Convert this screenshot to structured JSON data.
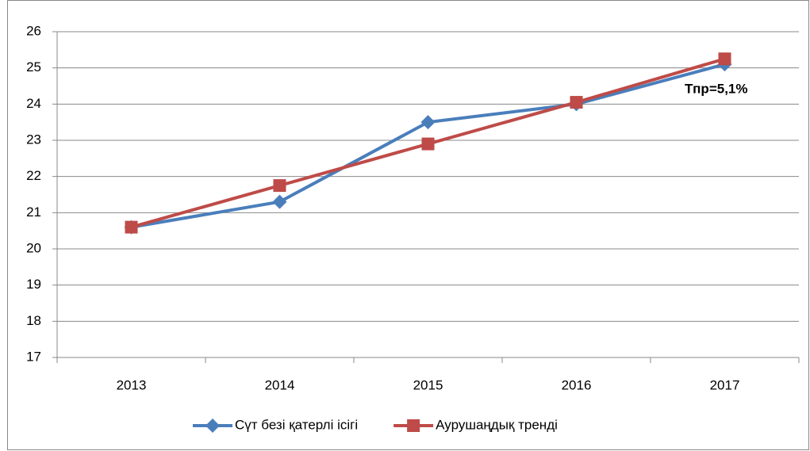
{
  "chart_data": {
    "type": "line",
    "categories": [
      "2013",
      "2014",
      "2015",
      "2016",
      "2017"
    ],
    "series": [
      {
        "name": "Сүт безі қатерлі ісігі",
        "color": "#4a7ebb",
        "marker": "diamond",
        "values": [
          20.6,
          21.3,
          23.5,
          24.0,
          25.1
        ]
      },
      {
        "name": "Аурушаңдық тренді",
        "color": "#be4b48",
        "marker": "square",
        "values": [
          20.6,
          21.75,
          22.9,
          24.05,
          25.25
        ]
      }
    ],
    "ylim": [
      17,
      26
    ],
    "yticks": [
      17,
      18,
      19,
      20,
      21,
      22,
      23,
      24,
      25,
      26
    ],
    "grid": true,
    "annotation": "Тпр=5,1%",
    "legend": "bottom"
  }
}
